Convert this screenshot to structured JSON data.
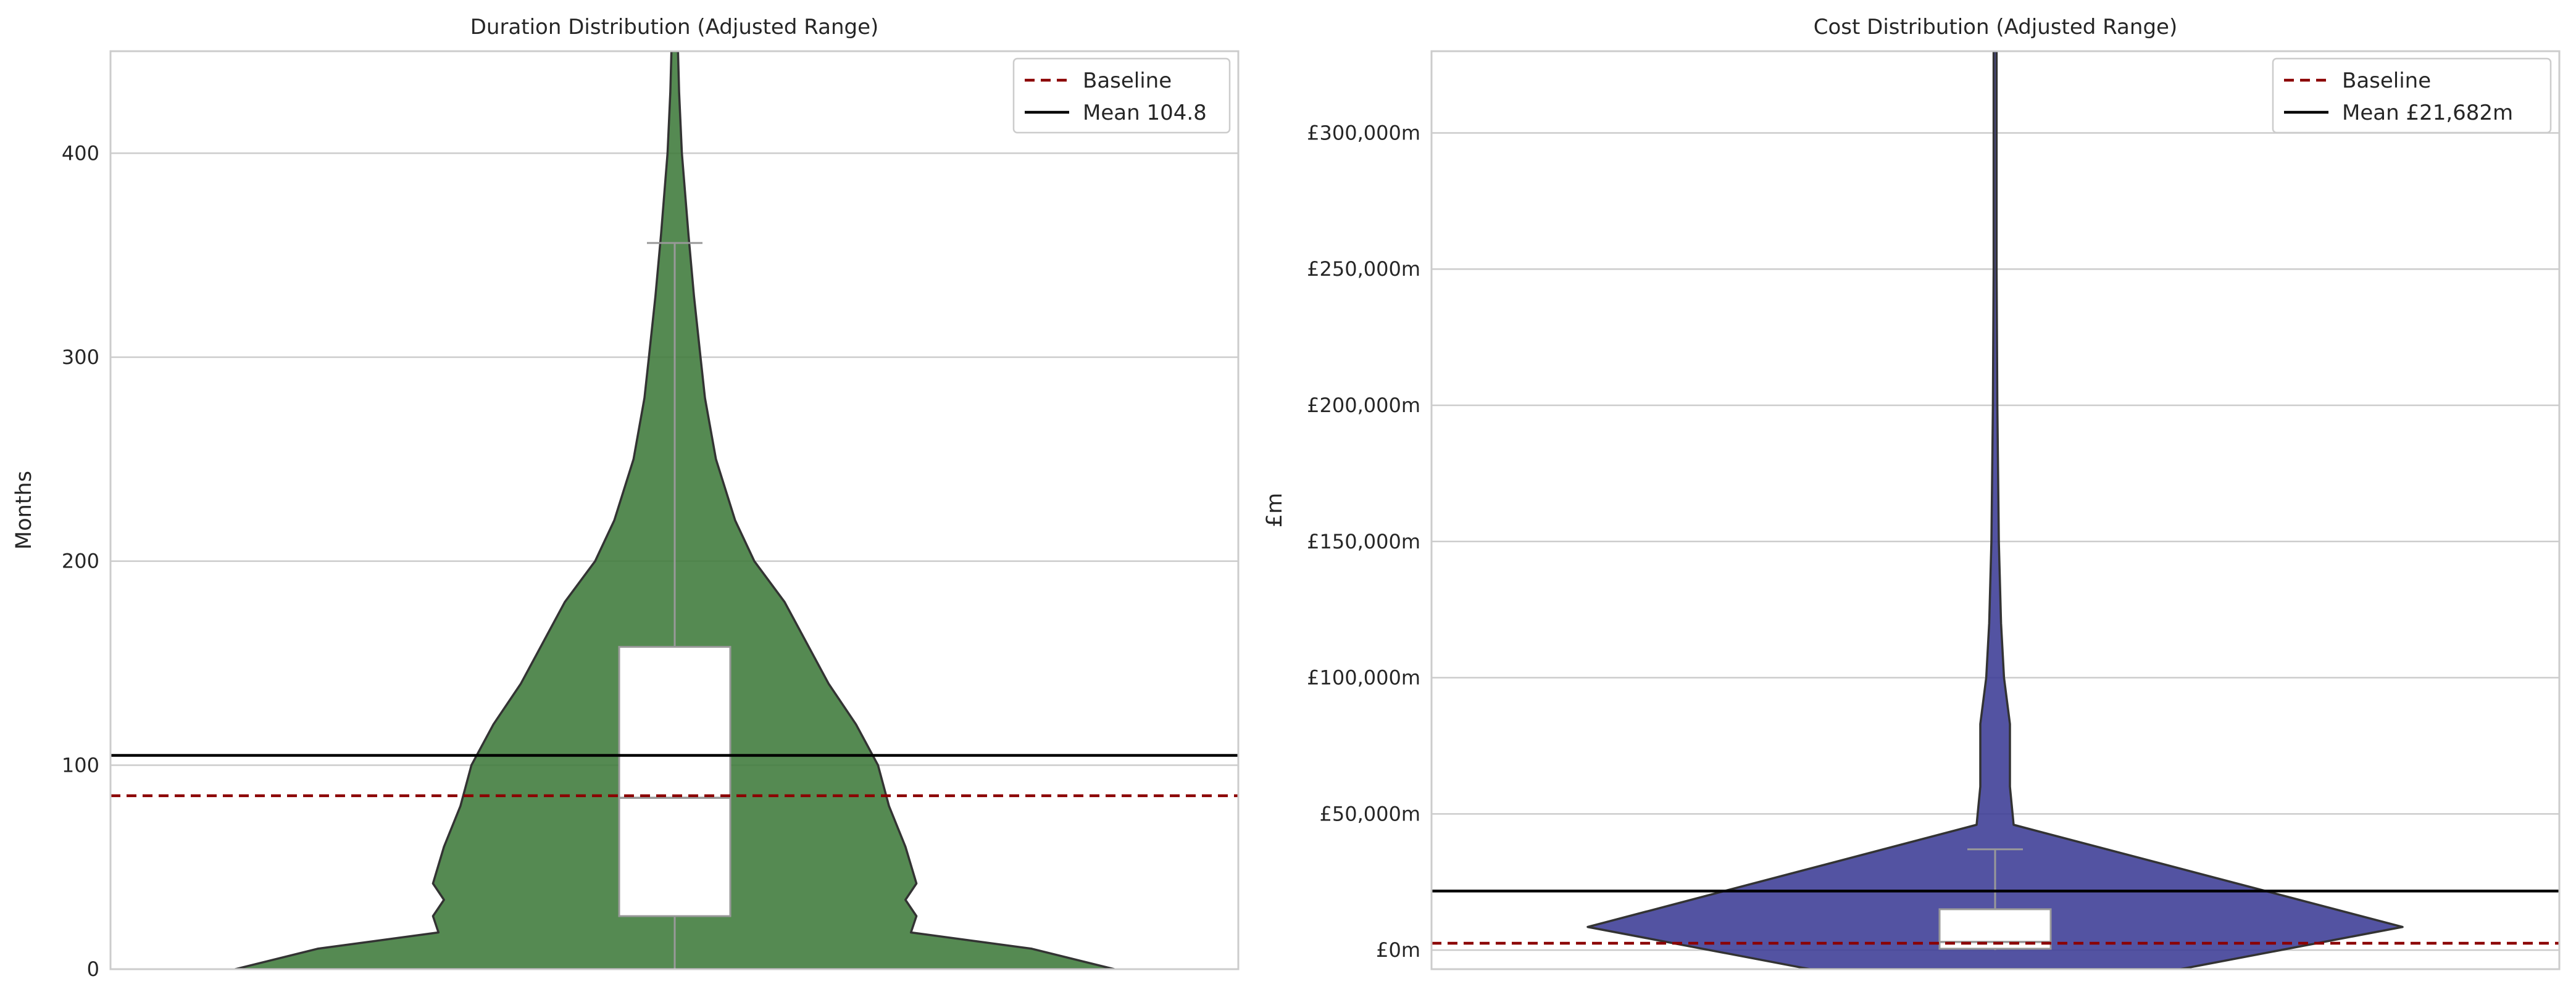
{
  "chart_data": [
    {
      "type": "violin",
      "title": "Duration Distribution (Adjusted Range)",
      "xlabel": "",
      "ylabel": "Months",
      "ylim": [
        0,
        450
      ],
      "yticks": [
        0,
        100,
        200,
        300,
        400
      ],
      "ytick_labels": [
        "0",
        "100",
        "200",
        "300",
        "400"
      ],
      "grid": true,
      "legend_position": "top-right",
      "colors": {
        "violin": "#3d7a3a",
        "baseline": "#8b0000",
        "mean": "#000000"
      },
      "baseline": 85,
      "mean": 104.8,
      "box": {
        "q1": 26,
        "median": 84,
        "q3": 158,
        "whisker_low": 0,
        "whisker_high": 356
      },
      "violin_profile": [
        [
          0,
          0.8
        ],
        [
          10,
          0.65
        ],
        [
          18,
          0.43
        ],
        [
          26,
          0.44
        ],
        [
          34,
          0.42
        ],
        [
          42,
          0.44
        ],
        [
          60,
          0.42
        ],
        [
          80,
          0.39
        ],
        [
          100,
          0.37
        ],
        [
          120,
          0.33
        ],
        [
          140,
          0.28
        ],
        [
          160,
          0.24
        ],
        [
          180,
          0.2
        ],
        [
          200,
          0.145
        ],
        [
          220,
          0.11
        ],
        [
          250,
          0.075
        ],
        [
          280,
          0.055
        ],
        [
          300,
          0.047
        ],
        [
          330,
          0.035
        ],
        [
          360,
          0.025
        ],
        [
          400,
          0.013
        ],
        [
          430,
          0.008
        ],
        [
          450,
          0.006
        ]
      ],
      "legend": [
        {
          "label": "Baseline",
          "style": "dashed",
          "color": "#8b0000"
        },
        {
          "label": "Mean 104.8",
          "style": "solid",
          "color": "#000000"
        }
      ]
    },
    {
      "type": "violin",
      "title": "Cost Distribution (Adjusted Range)",
      "xlabel": "",
      "ylabel": "£m",
      "ylim": [
        -7000,
        330000
      ],
      "yticks": [
        0,
        50000,
        100000,
        150000,
        200000,
        250000,
        300000
      ],
      "ytick_labels": [
        "£0m",
        "£50,000m",
        "£100,000m",
        "£150,000m",
        "£200,000m",
        "£250,000m",
        "£300,000m"
      ],
      "grid": true,
      "legend_position": "top-right",
      "colors": {
        "violin": "#3b3b95",
        "baseline": "#8b0000",
        "mean": "#000000"
      },
      "baseline": 2500,
      "mean": 21682,
      "box": {
        "q1": 500,
        "median": 3000,
        "q3": 15000,
        "whisker_low": 0,
        "whisker_high": 37000
      },
      "violin_profile": [
        [
          -7000,
          0.25
        ],
        [
          8500,
          0.55
        ],
        [
          46000,
          0.025
        ],
        [
          60000,
          0.02
        ],
        [
          83000,
          0.02
        ],
        [
          100000,
          0.012
        ],
        [
          120000,
          0.008
        ],
        [
          150000,
          0.005
        ],
        [
          200000,
          0.003
        ],
        [
          250000,
          0.002
        ],
        [
          300000,
          0.002
        ],
        [
          330000,
          0.002
        ]
      ],
      "legend": [
        {
          "label": "Baseline",
          "style": "dashed",
          "color": "#8b0000"
        },
        {
          "label": "Mean £21,682m",
          "style": "solid",
          "color": "#000000"
        }
      ]
    }
  ]
}
